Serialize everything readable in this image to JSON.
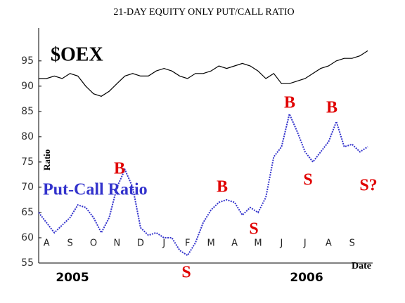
{
  "chart_data": {
    "type": "line",
    "title": "21-DAY EQUITY ONLY PUT/CALL RATIO",
    "y_label": "Ratio",
    "x_label": "Date",
    "years": [
      "2005",
      "2006"
    ],
    "categories": [
      null,
      "A",
      null,
      null,
      "S",
      null,
      null,
      "O",
      null,
      null,
      "N",
      null,
      null,
      "D",
      null,
      null,
      "J",
      null,
      null,
      "F",
      null,
      null,
      "M",
      null,
      null,
      "A",
      null,
      null,
      "M",
      null,
      null,
      "J",
      null,
      null,
      "J",
      null,
      null,
      "A",
      null,
      null,
      "S",
      null,
      null
    ],
    "series": [
      {
        "name": "$OEX",
        "color": "#000000",
        "values": [
          91.5,
          91.5,
          92,
          91.5,
          92.5,
          92,
          90,
          88.5,
          88,
          89,
          90.5,
          92,
          92.5,
          92,
          92,
          93,
          93.5,
          93,
          92,
          91.5,
          92.5,
          92.5,
          93,
          94,
          93.5,
          94,
          94.5,
          94,
          93,
          91.5,
          92.5,
          90.5,
          90.5,
          91,
          91.5,
          92.5,
          93.5,
          94,
          95,
          95.5,
          95.5,
          96,
          97
        ]
      },
      {
        "name": "Put-Call Ratio",
        "color": "#3333cc",
        "values": [
          65,
          63,
          61,
          62.5,
          64,
          66.5,
          66,
          64,
          61,
          64,
          70,
          73.5,
          70,
          62,
          60.5,
          61,
          60,
          60,
          57.5,
          56.5,
          59,
          63,
          65.5,
          67,
          67.5,
          67,
          64.5,
          66,
          65,
          68,
          76,
          78,
          84.5,
          81,
          77,
          75,
          77,
          79,
          83,
          78,
          78.5,
          77,
          78
        ]
      }
    ],
    "annotations": [
      "B",
      "B",
      "B",
      "B",
      "S",
      "S",
      "S",
      "S?"
    ],
    "annotation_color": "#e00000",
    "ylim": [
      55,
      101.5
    ],
    "yticks": [
      55,
      60,
      65,
      70,
      75,
      80,
      85,
      90,
      95
    ]
  }
}
